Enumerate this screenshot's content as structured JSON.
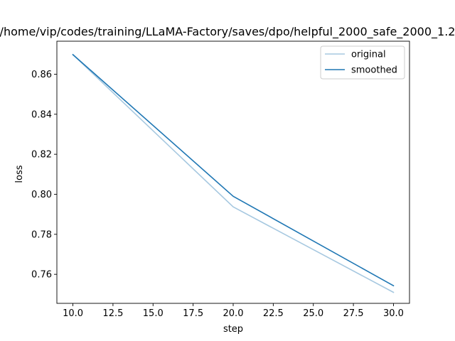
{
  "chart_data": {
    "type": "line",
    "title": "/home/vip/codes/training/LLaMA-Factory/saves/dpo/helpful_2000_safe_2000_1.2",
    "xlabel": "step",
    "ylabel": "loss",
    "xlim": [
      9.0,
      31.0
    ],
    "ylim": [
      0.7455,
      0.8765
    ],
    "xticks": [
      10.0,
      12.5,
      15.0,
      17.5,
      20.0,
      22.5,
      25.0,
      27.5,
      30.0
    ],
    "xtick_labels": [
      "10.0",
      "12.5",
      "15.0",
      "17.5",
      "20.0",
      "22.5",
      "25.0",
      "27.5",
      "30.0"
    ],
    "yticks": [
      0.76,
      0.78,
      0.8,
      0.82,
      0.84,
      0.86
    ],
    "ytick_labels": [
      "0.76",
      "0.78",
      "0.80",
      "0.82",
      "0.84",
      "0.86"
    ],
    "grid": false,
    "legend_position": "top-right",
    "series": [
      {
        "name": "original",
        "color": "#a6c8e0",
        "x": [
          10,
          20,
          30
        ],
        "y": [
          0.8698,
          0.7937,
          0.751
        ]
      },
      {
        "name": "smoothed",
        "color": "#1f77b4",
        "x": [
          10,
          20,
          30
        ],
        "y": [
          0.8698,
          0.799,
          0.7543
        ]
      }
    ]
  }
}
